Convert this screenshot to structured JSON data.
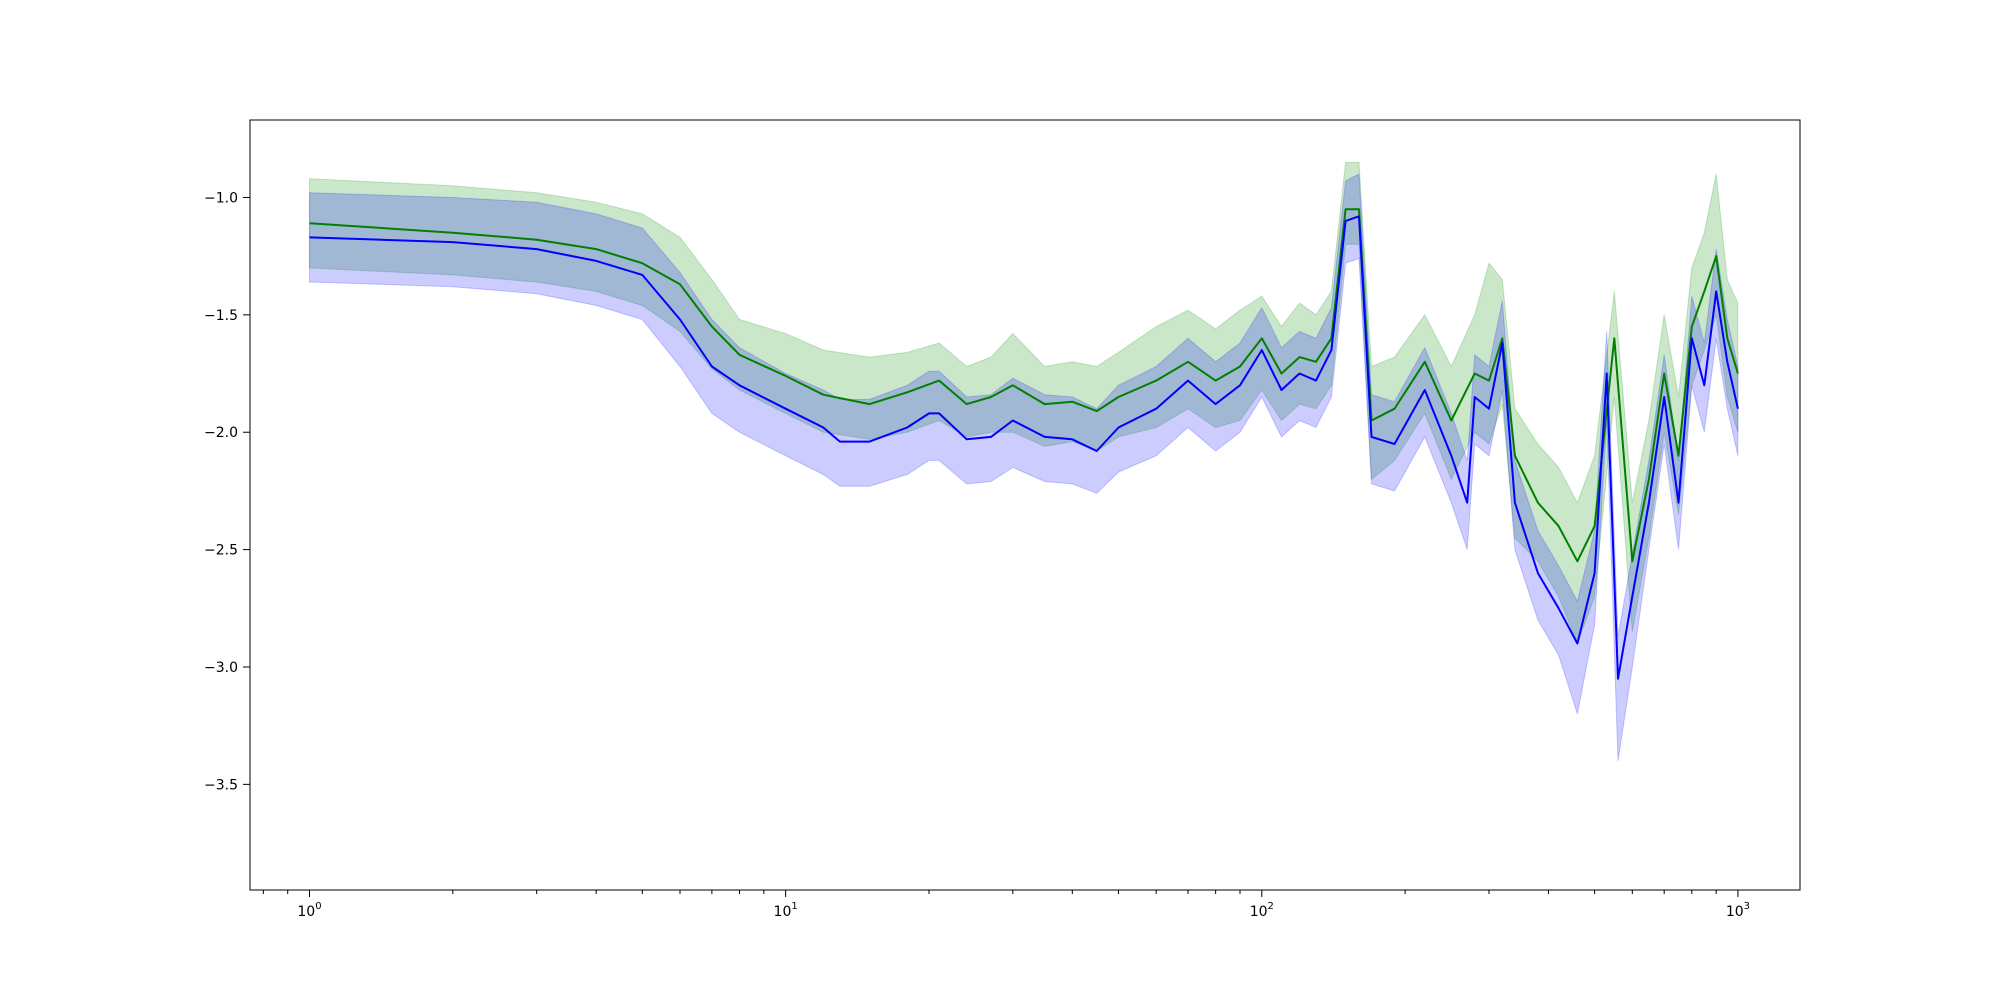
{
  "chart_data": {
    "type": "area",
    "title": "",
    "xlabel": "",
    "ylabel": "",
    "xscale": "log",
    "xlim": [
      0.75,
      1350
    ],
    "ylim": [
      -3.95,
      -0.67
    ],
    "grid": false,
    "legend": "none",
    "x_ticks": [
      {
        "base": "10",
        "exp": "0",
        "value": 1
      },
      {
        "base": "10",
        "exp": "1",
        "value": 10
      },
      {
        "base": "10",
        "exp": "2",
        "value": 100
      },
      {
        "base": "10",
        "exp": "3",
        "value": 1000
      }
    ],
    "y_ticks": [
      {
        "label": "−1.0",
        "value": -1.0
      },
      {
        "label": "−1.5",
        "value": -1.5
      },
      {
        "label": "−2.0",
        "value": -2.0
      },
      {
        "label": "−2.5",
        "value": -2.5
      },
      {
        "label": "−3.0",
        "value": -3.0
      },
      {
        "label": "−3.5",
        "value": -3.5
      }
    ],
    "series": [
      {
        "color": "#008000",
        "band_color": "#2ca02c",
        "band_opacity": 0.25,
        "x": [
          1,
          2,
          3,
          4,
          5,
          6,
          7,
          8,
          10,
          12,
          15,
          18,
          21,
          24,
          27,
          30,
          35,
          40,
          45,
          50,
          60,
          70,
          80,
          90,
          100,
          110,
          120,
          130,
          140,
          150,
          160,
          170,
          190,
          220,
          250,
          280,
          300,
          320,
          340,
          380,
          420,
          460,
          500,
          550,
          600,
          650,
          700,
          750,
          800,
          850,
          900,
          950,
          1000
        ],
        "y": [
          -1.11,
          -1.15,
          -1.18,
          -1.22,
          -1.28,
          -1.37,
          -1.55,
          -1.67,
          -1.76,
          -1.84,
          -1.88,
          -1.83,
          -1.78,
          -1.88,
          -1.85,
          -1.8,
          -1.88,
          -1.87,
          -1.91,
          -1.85,
          -1.78,
          -1.7,
          -1.78,
          -1.72,
          -1.6,
          -1.75,
          -1.68,
          -1.7,
          -1.6,
          -1.05,
          -1.05,
          -1.95,
          -1.9,
          -1.7,
          -1.95,
          -1.75,
          -1.78,
          -1.6,
          -2.1,
          -2.3,
          -2.4,
          -2.55,
          -2.4,
          -1.6,
          -2.55,
          -2.2,
          -1.75,
          -2.1,
          -1.55,
          -1.4,
          -1.25,
          -1.6,
          -1.75
        ],
        "upper": [
          -0.92,
          -0.95,
          -0.98,
          -1.02,
          -1.07,
          -1.17,
          -1.35,
          -1.52,
          -1.58,
          -1.65,
          -1.68,
          -1.66,
          -1.62,
          -1.72,
          -1.68,
          -1.58,
          -1.72,
          -1.7,
          -1.72,
          -1.66,
          -1.55,
          -1.48,
          -1.56,
          -1.48,
          -1.42,
          -1.55,
          -1.45,
          -1.5,
          -1.4,
          -0.85,
          -0.85,
          -1.72,
          -1.68,
          -1.5,
          -1.72,
          -1.5,
          -1.28,
          -1.35,
          -1.9,
          -2.05,
          -2.15,
          -2.3,
          -2.1,
          -1.4,
          -2.3,
          -1.95,
          -1.5,
          -1.85,
          -1.3,
          -1.15,
          -0.9,
          -1.35,
          -1.45
        ],
        "lower": [
          -1.3,
          -1.33,
          -1.36,
          -1.4,
          -1.46,
          -1.57,
          -1.73,
          -1.82,
          -1.92,
          -2.0,
          -2.03,
          -2.0,
          -1.95,
          -2.02,
          -2.0,
          -2.0,
          -2.06,
          -2.04,
          -2.08,
          -2.02,
          -1.98,
          -1.9,
          -1.98,
          -1.95,
          -1.82,
          -1.95,
          -1.88,
          -1.9,
          -1.8,
          -1.2,
          -1.2,
          -2.2,
          -2.12,
          -1.92,
          -2.2,
          -2.0,
          -2.05,
          -1.88,
          -2.45,
          -2.55,
          -2.7,
          -2.9,
          -2.7,
          -1.85,
          -2.85,
          -2.45,
          -2.0,
          -2.35,
          -1.8,
          -1.65,
          -1.5,
          -1.85,
          -2.0
        ]
      },
      {
        "color": "#0000ff",
        "band_color": "#0000ff",
        "band_opacity": 0.2,
        "x": [
          1,
          2,
          3,
          4,
          5,
          6,
          7,
          8,
          10,
          12,
          13,
          15,
          18,
          20,
          21,
          24,
          27,
          30,
          35,
          40,
          45,
          50,
          60,
          70,
          80,
          90,
          100,
          110,
          120,
          130,
          140,
          150,
          160,
          170,
          190,
          220,
          250,
          270,
          280,
          300,
          320,
          340,
          380,
          420,
          460,
          500,
          530,
          560,
          600,
          650,
          700,
          750,
          800,
          850,
          900,
          950,
          1000
        ],
        "y": [
          -1.17,
          -1.19,
          -1.22,
          -1.27,
          -1.33,
          -1.52,
          -1.72,
          -1.8,
          -1.9,
          -1.98,
          -2.04,
          -2.04,
          -1.98,
          -1.92,
          -1.92,
          -2.03,
          -2.02,
          -1.95,
          -2.02,
          -2.03,
          -2.08,
          -1.98,
          -1.9,
          -1.78,
          -1.88,
          -1.8,
          -1.65,
          -1.82,
          -1.75,
          -1.78,
          -1.65,
          -1.1,
          -1.08,
          -2.02,
          -2.05,
          -1.82,
          -2.1,
          -2.3,
          -1.85,
          -1.9,
          -1.62,
          -2.3,
          -2.6,
          -2.75,
          -2.9,
          -2.6,
          -1.75,
          -3.05,
          -2.7,
          -2.3,
          -1.85,
          -2.3,
          -1.6,
          -1.8,
          -1.4,
          -1.7,
          -1.9
        ],
        "upper": [
          -0.98,
          -1.0,
          -1.02,
          -1.07,
          -1.13,
          -1.32,
          -1.52,
          -1.64,
          -1.75,
          -1.82,
          -1.86,
          -1.86,
          -1.8,
          -1.74,
          -1.74,
          -1.85,
          -1.84,
          -1.77,
          -1.84,
          -1.85,
          -1.9,
          -1.8,
          -1.72,
          -1.6,
          -1.7,
          -1.62,
          -1.47,
          -1.64,
          -1.57,
          -1.6,
          -1.47,
          -0.93,
          -0.9,
          -1.84,
          -1.87,
          -1.64,
          -1.92,
          -2.12,
          -1.67,
          -1.72,
          -1.44,
          -2.12,
          -2.42,
          -2.57,
          -2.72,
          -2.42,
          -1.57,
          -2.87,
          -2.52,
          -2.12,
          -1.67,
          -2.12,
          -1.42,
          -1.62,
          -1.22,
          -1.52,
          -1.72
        ],
        "lower": [
          -1.36,
          -1.38,
          -1.41,
          -1.46,
          -1.52,
          -1.72,
          -1.92,
          -2.0,
          -2.1,
          -2.18,
          -2.23,
          -2.23,
          -2.18,
          -2.12,
          -2.12,
          -2.22,
          -2.21,
          -2.15,
          -2.21,
          -2.22,
          -2.26,
          -2.17,
          -2.1,
          -1.98,
          -2.08,
          -2.0,
          -1.85,
          -2.02,
          -1.95,
          -1.98,
          -1.85,
          -1.28,
          -1.26,
          -2.22,
          -2.25,
          -2.02,
          -2.3,
          -2.5,
          -2.05,
          -2.1,
          -1.82,
          -2.5,
          -2.8,
          -2.95,
          -3.2,
          -2.82,
          -1.95,
          -3.4,
          -3.0,
          -2.5,
          -2.05,
          -2.5,
          -1.8,
          -2.0,
          -1.6,
          -1.9,
          -2.1
        ]
      }
    ]
  }
}
